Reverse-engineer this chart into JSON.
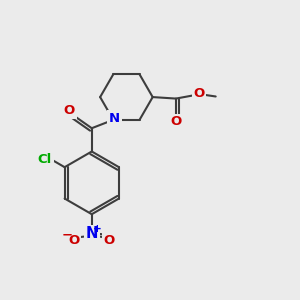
{
  "bg_color": "#ebebeb",
  "bond_color": "#3d3d3d",
  "lw": 1.5,
  "atom_colors": {
    "N": "#0000ee",
    "O": "#cc0000",
    "Cl": "#00aa00",
    "C": "#3d3d3d"
  },
  "font_size": 9.5,
  "fig_size": [
    3.0,
    3.0
  ],
  "dpi": 100
}
